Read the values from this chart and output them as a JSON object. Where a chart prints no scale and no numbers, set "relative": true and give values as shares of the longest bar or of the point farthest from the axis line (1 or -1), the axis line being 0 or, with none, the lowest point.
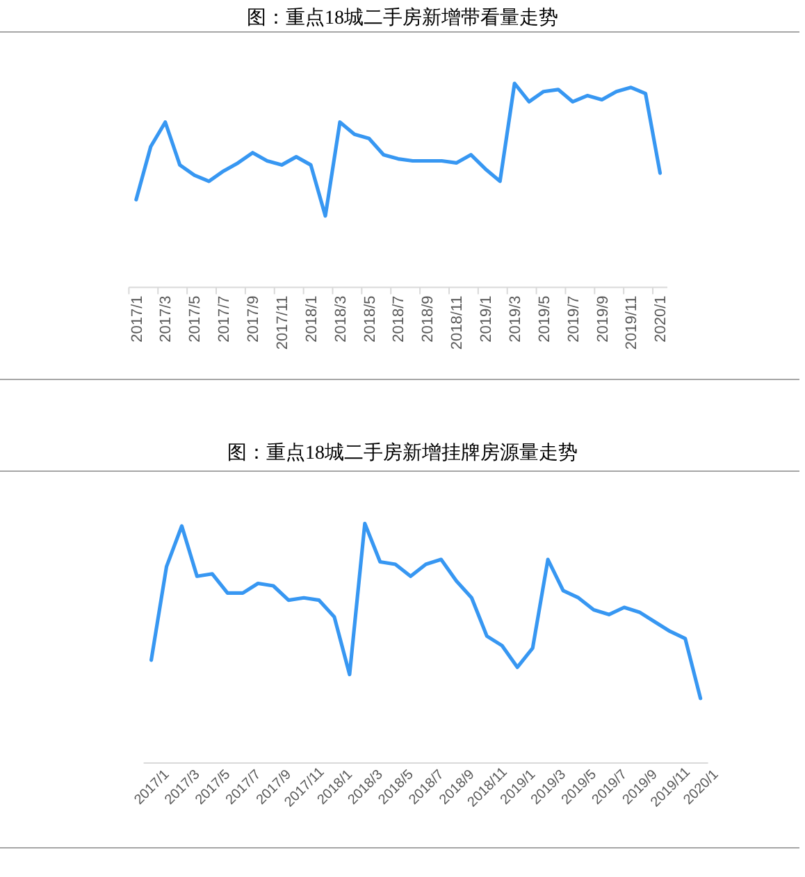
{
  "chart_data": [
    {
      "type": "line",
      "title": "图：重点18城二手房新增带看量走势",
      "relative": true,
      "color": "#3797f2",
      "categories": [
        "2017/1",
        null,
        "2017/3",
        null,
        "2017/5",
        null,
        "2017/7",
        null,
        "2017/9",
        null,
        "2017/11",
        null,
        "2018/1",
        null,
        "2018/3",
        null,
        "2018/5",
        null,
        "2018/7",
        null,
        "2018/9",
        null,
        "2018/11",
        null,
        "2019/1",
        null,
        "2019/3",
        null,
        "2019/5",
        null,
        "2019/7",
        null,
        "2019/9",
        null,
        "2019/11",
        null,
        "2020/1"
      ],
      "values": [
        0.43,
        0.69,
        0.81,
        0.6,
        0.55,
        0.52,
        0.57,
        0.61,
        0.66,
        0.62,
        0.6,
        0.64,
        0.6,
        0.35,
        0.81,
        0.75,
        0.73,
        0.65,
        0.63,
        0.62,
        0.62,
        0.62,
        0.61,
        0.65,
        0.58,
        0.52,
        1,
        0.91,
        0.96,
        0.97,
        0.91,
        0.94,
        0.92,
        0.96,
        0.98,
        0.95,
        0.56
      ]
    },
    {
      "type": "line",
      "title": "图：重点18城二手房新增挂牌房源量走势",
      "relative": true,
      "color": "#3797f2",
      "categories": [
        "2017/1",
        null,
        "2017/3",
        null,
        "2017/5",
        null,
        "2017/7",
        null,
        "2017/9",
        null,
        "2017/11",
        null,
        "2018/1",
        null,
        "2018/3",
        null,
        "2018/5",
        null,
        "2018/7",
        null,
        "2018/9",
        null,
        "2018/11",
        null,
        "2019/1",
        null,
        "2019/3",
        null,
        "2019/5",
        null,
        "2019/7",
        null,
        "2019/9",
        null,
        "2019/11",
        null,
        "2020/1"
      ],
      "values": [
        0.43,
        0.82,
        0.99,
        0.78,
        0.79,
        0.71,
        0.71,
        0.75,
        0.74,
        0.68,
        0.69,
        0.68,
        0.61,
        0.37,
        1,
        0.84,
        0.83,
        0.78,
        0.83,
        0.85,
        0.76,
        0.69,
        0.53,
        0.49,
        0.4,
        0.48,
        0.85,
        0.72,
        0.69,
        0.64,
        0.62,
        0.65,
        0.63,
        0.59,
        0.55,
        0.52,
        0.27
      ]
    }
  ]
}
